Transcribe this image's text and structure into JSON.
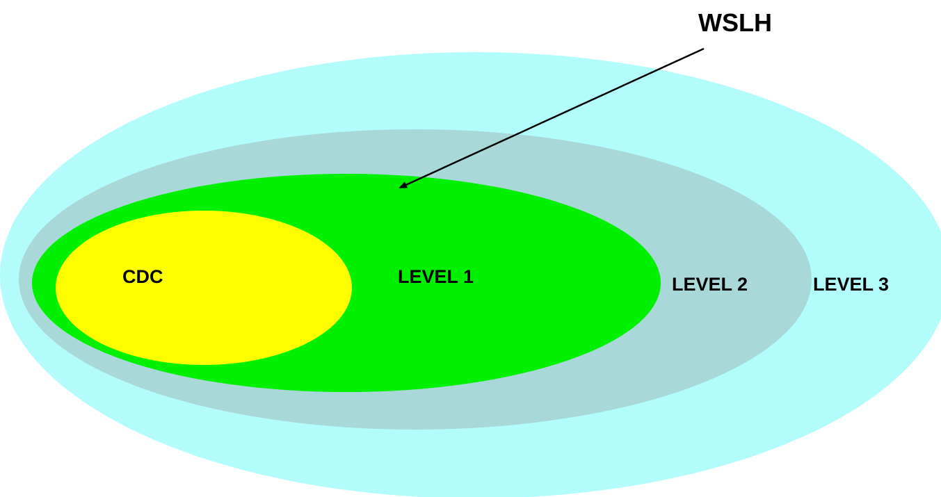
{
  "diagram": {
    "callout_label": "WSLH",
    "levels": [
      {
        "id": "level3",
        "label": "LEVEL 3",
        "color": "#b3fcfc"
      },
      {
        "id": "level2",
        "label": "LEVEL 2",
        "color": "#a9d8d8"
      },
      {
        "id": "level1",
        "label": "LEVEL 1",
        "color": "#00f000"
      },
      {
        "id": "cdc",
        "label": "CDC",
        "color": "#ffff00"
      }
    ],
    "arrow_color": "#000000"
  }
}
